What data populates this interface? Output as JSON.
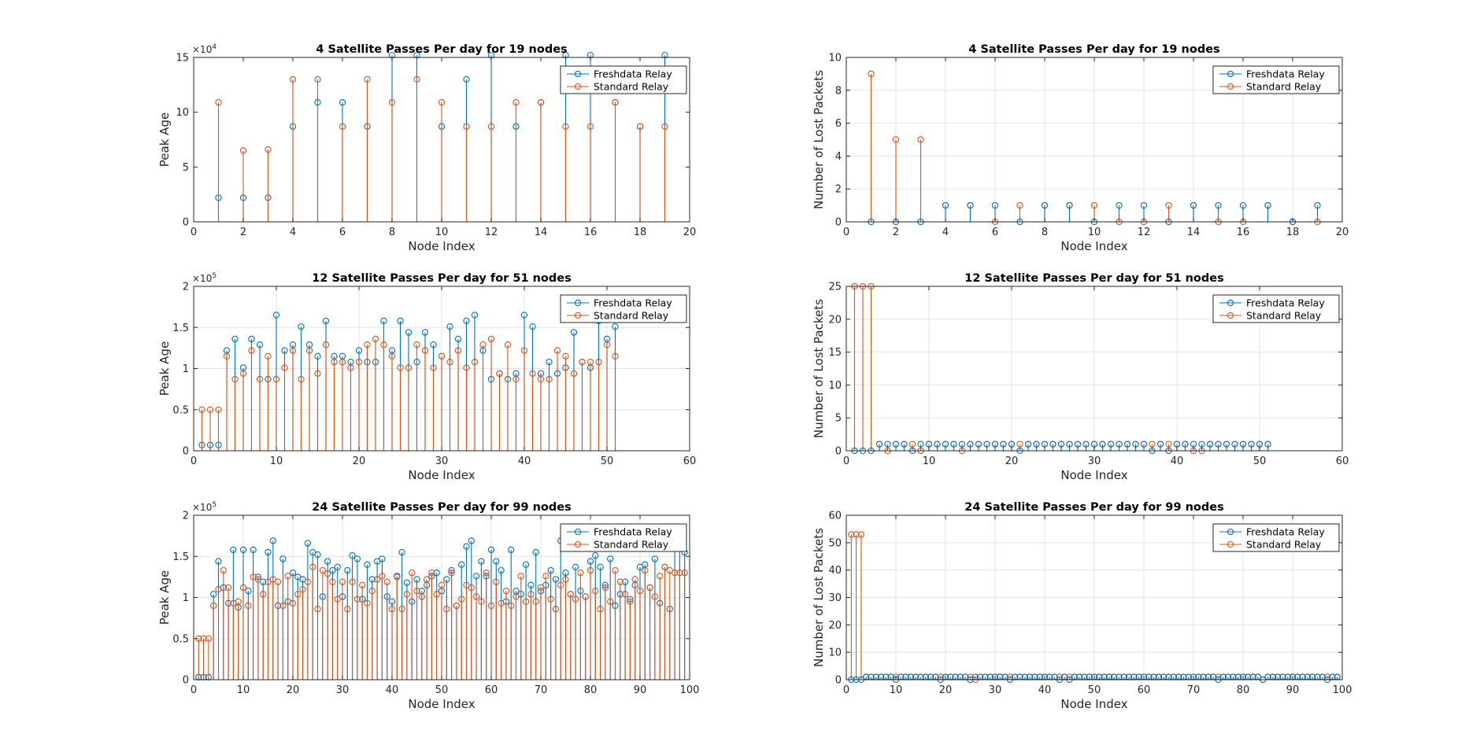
{
  "legend": [
    "Freshdata Relay",
    "Standard Relay"
  ],
  "colors": {
    "fresh": "#0072BD",
    "standard": "#D95319",
    "grid": "#e3e3e3",
    "axis": "#262626"
  },
  "chart_data": [
    {
      "id": "age19",
      "type": "stem",
      "title": "4 Satellite Passes Per day for 19 nodes",
      "xlabel": "Node Index",
      "ylabel": "Peak Age",
      "exponent": "4",
      "xlim": [
        0,
        20
      ],
      "ylim": [
        0,
        15
      ],
      "grid": false,
      "legend_position": "top-right",
      "xticks": [
        0,
        2,
        4,
        6,
        8,
        10,
        12,
        14,
        16,
        18,
        20
      ],
      "yticks": [
        0,
        5,
        10,
        15
      ],
      "series": [
        {
          "name": "Freshdata Relay",
          "x": [
            1,
            2,
            3,
            4,
            5,
            6,
            7,
            8,
            9,
            10,
            11,
            12,
            13,
            14,
            15,
            16,
            17,
            18,
            19
          ],
          "values": [
            2.2,
            2.2,
            2.2,
            8.7,
            10.9,
            10.9,
            8.7,
            15.2,
            15.2,
            8.7,
            13.0,
            15.2,
            8.7,
            10.9,
            15.2,
            15.2,
            10.9,
            8.7,
            15.2
          ]
        },
        {
          "name": "Standard Relay",
          "x": [
            1,
            2,
            3,
            4,
            5,
            6,
            7,
            8,
            9,
            10,
            11,
            12,
            13,
            14,
            15,
            16,
            17,
            18,
            19
          ],
          "values": [
            10.9,
            6.5,
            6.6,
            13.0,
            13.0,
            8.7,
            13.0,
            10.9,
            13.0,
            10.9,
            8.7,
            8.7,
            10.9,
            10.9,
            8.7,
            8.7,
            10.9,
            8.7,
            8.7
          ]
        }
      ]
    },
    {
      "id": "loss19",
      "type": "stem",
      "title": "4 Satellite Passes Per day for 19 nodes",
      "xlabel": "Node Index",
      "ylabel": "Number of Lost Packets",
      "exponent": "",
      "xlim": [
        0,
        20
      ],
      "ylim": [
        0,
        10
      ],
      "grid": true,
      "legend_position": "top-right",
      "xticks": [
        0,
        2,
        4,
        6,
        8,
        10,
        12,
        14,
        16,
        18,
        20
      ],
      "yticks": [
        0,
        2,
        4,
        6,
        8,
        10
      ],
      "series": [
        {
          "name": "Freshdata Relay",
          "x": [
            1,
            2,
            3,
            4,
            5,
            6,
            7,
            8,
            9,
            10,
            11,
            12,
            13,
            14,
            15,
            16,
            17,
            18,
            19
          ],
          "values": [
            0,
            0,
            0,
            1,
            1,
            1,
            0,
            1,
            1,
            0,
            1,
            1,
            0,
            1,
            1,
            1,
            1,
            0,
            1
          ]
        },
        {
          "name": "Standard Relay",
          "x": [
            1,
            2,
            3,
            4,
            5,
            6,
            7,
            8,
            9,
            10,
            11,
            12,
            13,
            14,
            15,
            16,
            17,
            18,
            19
          ],
          "values": [
            9,
            5,
            5,
            1,
            1,
            0,
            1,
            1,
            1,
            1,
            0,
            0,
            1,
            1,
            0,
            0,
            1,
            0,
            0
          ]
        }
      ]
    },
    {
      "id": "age51",
      "type": "stem",
      "title": "12 Satellite Passes Per day for 51 nodes",
      "xlabel": "Node Index",
      "ylabel": "Peak Age",
      "exponent": "5",
      "xlim": [
        0,
        60
      ],
      "ylim": [
        0,
        2
      ],
      "grid": true,
      "legend_position": "top-right",
      "xticks": [
        0,
        10,
        20,
        30,
        40,
        50,
        60
      ],
      "yticks": [
        0,
        0.5,
        1,
        1.5,
        2
      ],
      "series": [
        {
          "name": "Freshdata Relay",
          "values": [
            0.07,
            0.07,
            0.07,
            1.22,
            1.36,
            1.01,
            1.36,
            1.29,
            0.87,
            1.65,
            1.22,
            1.29,
            1.51,
            1.29,
            1.15,
            1.58,
            1.15,
            1.15,
            1.08,
            1.22,
            1.08,
            1.08,
            1.58,
            1.22,
            1.58,
            1.44,
            1.08,
            1.44,
            1.29,
            1.15,
            1.51,
            1.36,
            1.58,
            1.65,
            1.22,
            0.87,
            0.94,
            0.87,
            0.94,
            1.65,
            1.51,
            0.94,
            1.08,
            0.94,
            1.01,
            1.44,
            1.08,
            1.01,
            1.58,
            1.36,
            1.51
          ]
        },
        {
          "name": "Standard Relay",
          "values": [
            0.5,
            0.5,
            0.5,
            1.15,
            0.87,
            0.94,
            1.22,
            0.87,
            1.15,
            0.87,
            1.01,
            1.22,
            0.87,
            1.22,
            0.94,
            1.29,
            1.08,
            1.08,
            1.01,
            1.08,
            1.29,
            1.36,
            1.29,
            1.15,
            1.01,
            1.01,
            1.29,
            1.22,
            1.01,
            1.15,
            1.08,
            1.22,
            1.01,
            1.08,
            1.29,
            1.36,
            0.94,
            1.29,
            0.87,
            1.22,
            0.94,
            0.87,
            0.87,
            1.22,
            1.15,
            0.94,
            1.08,
            1.08,
            1.08,
            1.29,
            1.15
          ]
        }
      ]
    },
    {
      "id": "loss51",
      "type": "stem",
      "title": "12 Satellite Passes Per day for 51 nodes",
      "xlabel": "Node Index",
      "ylabel": "Number of Lost Packets",
      "exponent": "",
      "xlim": [
        0,
        60
      ],
      "ylim": [
        0,
        25
      ],
      "grid": true,
      "legend_position": "top-right",
      "xticks": [
        0,
        10,
        20,
        30,
        40,
        50,
        60
      ],
      "yticks": [
        0,
        5,
        10,
        15,
        20,
        25
      ],
      "series": [
        {
          "name": "Freshdata Relay",
          "values": [
            0,
            0,
            0,
            1,
            1,
            1,
            1,
            0,
            1,
            1,
            1,
            1,
            1,
            1,
            1,
            1,
            1,
            1,
            1,
            1,
            0,
            1,
            1,
            1,
            1,
            1,
            1,
            1,
            1,
            1,
            1,
            1,
            1,
            1,
            1,
            1,
            0,
            1,
            0,
            1,
            1,
            1,
            1,
            1,
            1,
            1,
            1,
            1,
            1,
            1,
            1
          ]
        },
        {
          "name": "Standard Relay",
          "values": [
            25,
            25,
            25,
            1,
            0,
            1,
            1,
            1,
            0,
            1,
            1,
            1,
            1,
            0,
            1,
            1,
            1,
            1,
            1,
            1,
            1,
            1,
            1,
            1,
            1,
            1,
            1,
            1,
            1,
            1,
            1,
            1,
            1,
            1,
            1,
            1,
            1,
            1,
            1,
            1,
            1,
            0,
            0,
            1,
            1,
            1,
            1,
            1,
            1,
            1,
            1
          ]
        }
      ]
    },
    {
      "id": "age99",
      "type": "stem",
      "title": "24 Satellite Passes Per day for 99 nodes",
      "xlabel": "Node Index",
      "ylabel": "Peak Age",
      "exponent": "5",
      "xlim": [
        0,
        100
      ],
      "ylim": [
        0,
        2
      ],
      "grid": true,
      "legend_position": "top-right",
      "xticks": [
        0,
        10,
        20,
        30,
        40,
        50,
        60,
        70,
        80,
        90,
        100
      ],
      "yticks": [
        0,
        0.5,
        1,
        1.5,
        2
      ],
      "series": [
        {
          "name": "Freshdata Relay",
          "values": [
            0.03,
            0.03,
            0.03,
            1.04,
            1.44,
            1.12,
            0.93,
            1.58,
            0.88,
            1.58,
            1.08,
            1.58,
            1.25,
            1.19,
            1.55,
            1.69,
            0.9,
            1.47,
            0.95,
            1.3,
            1.25,
            1.22,
            1.66,
            1.55,
            1.52,
            1.01,
            1.44,
            1.33,
            1.37,
            1.01,
            1.33,
            1.51,
            1.47,
            0.98,
            1.4,
            1.22,
            1.44,
            1.47,
            1.01,
            0.95,
            1.26,
            1.55,
            1.18,
            0.95,
            1.22,
            1.08,
            1.15,
            1.26,
            1.3,
            1.08,
            1.22,
            1.33,
            0.9,
            1.4,
            1.62,
            1.69,
            1.26,
            1.44,
            1.26,
            1.58,
            1.44,
            1.33,
            0.95,
            1.58,
            1.08,
            1.04,
            1.4,
            1.15,
            1.55,
            1.08,
            1.15,
            1.33,
            1.22,
            1.69,
            1.3,
            1.04,
            1.37,
            1.08,
            1.01,
            1.44,
            1.51,
            1.37,
            1.15,
            1.47,
            0.9,
            1.04,
            1.19,
            0.98,
            1.15,
            1.37,
            1.4,
            1.12,
            1.47,
            0.93,
            1.37,
            0.86,
            1.62,
            1.69,
            1.55
          ]
        },
        {
          "name": "Standard Relay",
          "values": [
            0.5,
            0.5,
            0.5,
            0.9,
            1.1,
            1.33,
            1.12,
            0.93,
            0.95,
            1.12,
            0.9,
            1.25,
            1.22,
            1.04,
            1.19,
            1.22,
            1.19,
            0.9,
            1.26,
            0.93,
            1.04,
            1.1,
            1.19,
            1.37,
            0.86,
            1.33,
            1.29,
            1.19,
            0.98,
            1.19,
            0.86,
            1.19,
            0.98,
            1.15,
            0.93,
            1.08,
            1.22,
            1.26,
            1.19,
            0.86,
            1.25,
            0.86,
            1.04,
            1.3,
            1.08,
            1.01,
            1.22,
            1.3,
            1.04,
            1.15,
            0.86,
            1.3,
            0.9,
            0.98,
            1.15,
            1.12,
            1.01,
            0.95,
            1.3,
            0.9,
            1.19,
            0.93,
            1.08,
            0.9,
            1.01,
            1.26,
            0.95,
            1.04,
            0.95,
            1.12,
            1.26,
            0.98,
            0.86,
            1.15,
            1.22,
            1.04,
            0.98,
            1.3,
            1.01,
            1.33,
            1.08,
            0.86,
            1.12,
            0.95,
            1.33,
            1.19,
            1.04,
            0.95,
            1.22,
            1.08,
            1.33,
            1.12,
            1.01,
            1.26,
            1.37,
            1.33,
            1.3,
            1.3,
            1.3
          ]
        }
      ]
    },
    {
      "id": "loss99",
      "type": "stem",
      "title": "24 Satellite Passes Per day for 99 nodes",
      "xlabel": "Node Index",
      "ylabel": "Number of Lost Packets",
      "exponent": "",
      "xlim": [
        0,
        100
      ],
      "ylim": [
        0,
        60
      ],
      "grid": true,
      "legend_position": "top-right",
      "xticks": [
        0,
        10,
        20,
        30,
        40,
        50,
        60,
        70,
        80,
        90,
        100
      ],
      "yticks": [
        0,
        10,
        20,
        30,
        40,
        50,
        60
      ],
      "series": [
        {
          "name": "Freshdata Relay",
          "values": [
            0,
            0,
            0,
            1,
            1,
            1,
            1,
            1,
            1,
            0,
            1,
            1,
            1,
            1,
            1,
            1,
            1,
            1,
            0,
            1,
            1,
            1,
            1,
            1,
            0,
            1,
            1,
            1,
            1,
            1,
            1,
            1,
            0,
            1,
            1,
            1,
            1,
            1,
            1,
            1,
            1,
            1,
            0,
            1,
            0,
            1,
            1,
            1,
            1,
            1,
            1,
            1,
            1,
            1,
            1,
            1,
            1,
            1,
            1,
            1,
            1,
            1,
            1,
            1,
            1,
            1,
            1,
            1,
            1,
            1,
            1,
            1,
            1,
            1,
            0,
            1,
            1,
            1,
            1,
            1,
            1,
            1,
            1,
            0,
            1,
            1,
            1,
            1,
            1,
            1,
            1,
            1,
            1,
            1,
            1,
            1,
            0,
            1,
            1
          ]
        },
        {
          "name": "Standard Relay",
          "values": [
            53,
            53,
            53,
            1,
            1,
            1,
            1,
            1,
            1,
            1,
            1,
            1,
            1,
            1,
            1,
            1,
            1,
            1,
            1,
            1,
            1,
            1,
            1,
            1,
            1,
            0,
            1,
            1,
            1,
            1,
            1,
            1,
            1,
            1,
            1,
            1,
            1,
            1,
            1,
            1,
            1,
            1,
            1,
            1,
            1,
            1,
            1,
            1,
            1,
            1,
            1,
            1,
            1,
            1,
            1,
            1,
            1,
            1,
            1,
            1,
            1,
            1,
            1,
            1,
            1,
            1,
            1,
            1,
            1,
            1,
            1,
            1,
            1,
            1,
            1,
            1,
            1,
            1,
            1,
            1,
            1,
            1,
            1,
            0,
            1,
            1,
            1,
            1,
            1,
            1,
            1,
            1,
            1,
            1,
            1,
            1,
            1,
            1,
            1
          ]
        }
      ]
    }
  ]
}
